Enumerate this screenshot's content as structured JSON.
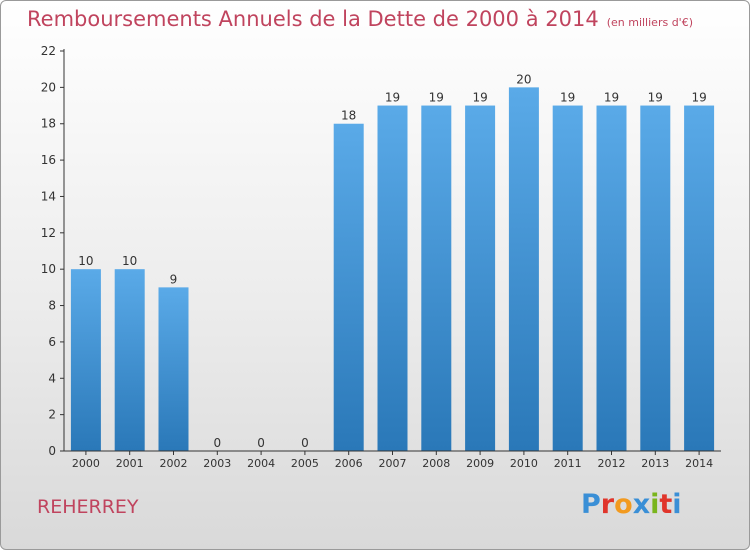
{
  "title": "Remboursements Annuels de la Dette de 2000 à 2014",
  "subtitle": "(en milliers d'€)",
  "commune": "REHERREY",
  "logo": {
    "text": "Proxiti",
    "letter_colors": [
      "#3a8fd6",
      "#e0352b",
      "#f29a1f",
      "#3a8fd6",
      "#7ab51d",
      "#e0352b",
      "#3a8fd6"
    ]
  },
  "colors": {
    "title": "#c0445e",
    "bar_light": "#5aaae8",
    "bar_dark": "#2a78b8",
    "axis": "#333333"
  },
  "chart_data": {
    "type": "bar",
    "title": "Remboursements Annuels de la Dette de 2000 à 2014",
    "categories": [
      "2000",
      "2001",
      "2002",
      "2003",
      "2004",
      "2005",
      "2006",
      "2007",
      "2008",
      "2009",
      "2010",
      "2011",
      "2012",
      "2013",
      "2014"
    ],
    "values": [
      10,
      10,
      9,
      0,
      0,
      0,
      18,
      19,
      19,
      19,
      20,
      19,
      19,
      19,
      19
    ],
    "value_labels": [
      "10",
      "10",
      "9",
      "0",
      "0",
      "0",
      "18",
      "19",
      "19",
      "19",
      "20",
      "19",
      "19",
      "19",
      "19"
    ],
    "yticks": [
      0,
      2,
      4,
      6,
      8,
      10,
      12,
      14,
      16,
      18,
      20,
      22
    ],
    "ylim": [
      0,
      22
    ],
    "grid": false,
    "legend": "none"
  }
}
